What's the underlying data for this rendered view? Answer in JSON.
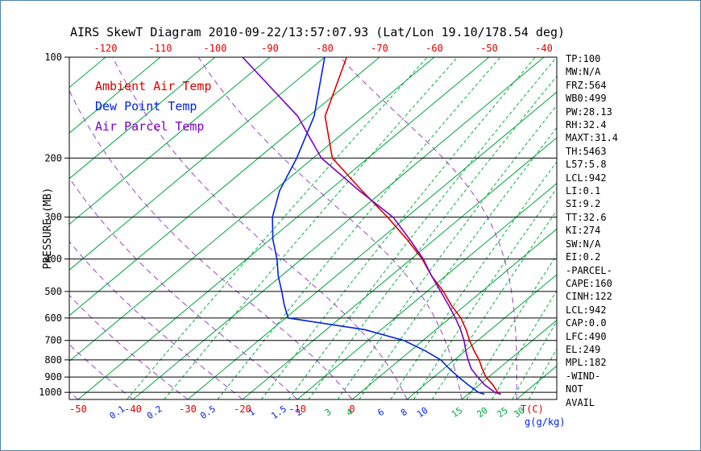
{
  "header": {
    "title": "AIRS SkewT Diagram 2010-09-22/13:57:07.93 (Lat/Lon 19.10/178.54 deg)"
  },
  "legend": {
    "items": [
      {
        "label": "Ambient Air Temp",
        "color": "#dd0000"
      },
      {
        "label": "Dew Point Temp",
        "color": "#0022dd"
      },
      {
        "label": "Air Parcel Temp",
        "color": "#7a00c2"
      }
    ]
  },
  "stats": {
    "lines": [
      "TP:100",
      "MW:N/A",
      "FRZ:564",
      "WB0:499",
      "PW:28.13",
      "RH:32.4",
      "MAXT:31.4",
      "TH:5463",
      "L57:5.8",
      "LCL:942",
      "LI:0.1",
      "SI:9.2",
      "TT:32.6",
      "KI:274",
      "SW:N/A",
      "EI:0.2",
      "-PARCEL-",
      "CAPE:160",
      "CINH:122",
      "LCL:942",
      "CAP:0.0",
      "LFC:490",
      "EL:249",
      "MPL:182",
      "-WIND-",
      "NOT",
      "AVAIL"
    ]
  },
  "chart_data": {
    "type": "line",
    "title": "AIRS SkewT Diagram 2010-09-22/13:57:07.93 (Lat/Lon 19.10/178.54 deg)",
    "y_axis": {
      "label": "PRESSURE (MB)",
      "scale": "log",
      "range": [
        100,
        1050
      ],
      "ticks": [
        100,
        200,
        300,
        400,
        500,
        600,
        700,
        800,
        900,
        1000
      ],
      "color": "#000000"
    },
    "x_axis": {
      "unit_label": "T(C)",
      "unit_label_color": "#dd0000",
      "mix_unit_label": "g(g/kg)",
      "mix_unit_label_color": "#0022dd",
      "top_ticks": [
        -120,
        -110,
        -100,
        -90,
        -80,
        -70,
        -60,
        -50,
        -40
      ],
      "bottom_ticks": [
        -50,
        -40,
        -30,
        -20,
        -10,
        0
      ],
      "tick_color": "#dd0000"
    },
    "grid": {
      "isotherms": {
        "min": -160,
        "max": 40,
        "step": 10,
        "color": "#00a53c",
        "style": "solid"
      },
      "mixing_ratio": {
        "color": "#00b33c",
        "style": "dashed",
        "labels": [
          {
            "v": "0.1",
            "color": "#0022dd"
          },
          {
            "v": "0.2",
            "color": "#0022dd"
          },
          {
            "v": "0.5",
            "color": "#0022dd"
          },
          {
            "v": "1",
            "color": "#0022dd"
          },
          {
            "v": "1.5",
            "color": "#0022dd"
          },
          {
            "v": "2",
            "color": "#0022dd"
          },
          {
            "v": "3",
            "color": "#00a53c"
          },
          {
            "v": "4",
            "color": "#00a53c"
          },
          {
            "v": "6",
            "color": "#0022dd"
          },
          {
            "v": "8",
            "color": "#0022dd"
          },
          {
            "v": "10",
            "color": "#0022dd"
          },
          {
            "v": "15",
            "color": "#00a53c"
          },
          {
            "v": "20",
            "color": "#00a53c"
          },
          {
            "v": "25",
            "color": "#00a53c"
          },
          {
            "v": "30",
            "color": "#00a53c"
          }
        ]
      },
      "moist_adiabats": {
        "start_temps": [
          -60,
          -50,
          -40,
          -30,
          -20,
          -10,
          0,
          10,
          20,
          30,
          40
        ],
        "color": "#9944cc",
        "style": "dashed"
      }
    },
    "pressure_levels": [
      1013,
      1000,
      950,
      900,
      850,
      800,
      750,
      700,
      650,
      600,
      550,
      500,
      450,
      400,
      350,
      300,
      250,
      200,
      150,
      100
    ],
    "series": [
      {
        "name": "Ambient Air Temp",
        "color": "#dd0000",
        "values": [
          26.0,
          25.0,
          22.5,
          19.5,
          17.0,
          14.5,
          11.5,
          8.5,
          5.5,
          2.0,
          -2.5,
          -7.0,
          -12.5,
          -18.0,
          -25.0,
          -33.5,
          -44.0,
          -56.5,
          -67.0,
          -76.0
        ]
      },
      {
        "name": "Dew Point Temp",
        "color": "#0022dd",
        "values": [
          23.0,
          21.5,
          18.0,
          14.5,
          11.0,
          7.5,
          2.5,
          -3.5,
          -13.0,
          -29.5,
          -33.0,
          -36.5,
          -40.5,
          -44.5,
          -49.5,
          -54.5,
          -59.0,
          -63.0,
          -69.0,
          -80.0
        ]
      },
      {
        "name": "Air Parcel Temp",
        "color": "#7a00c2",
        "values": [
          26.0,
          24.5,
          21.0,
          18.0,
          15.0,
          12.5,
          10.0,
          7.5,
          4.5,
          1.0,
          -3.0,
          -7.5,
          -12.5,
          -17.8,
          -24.5,
          -32.5,
          -44.5,
          -58.5,
          -72.0,
          -95.0
        ]
      }
    ],
    "legend_position": "top-left",
    "grid_on": true
  }
}
